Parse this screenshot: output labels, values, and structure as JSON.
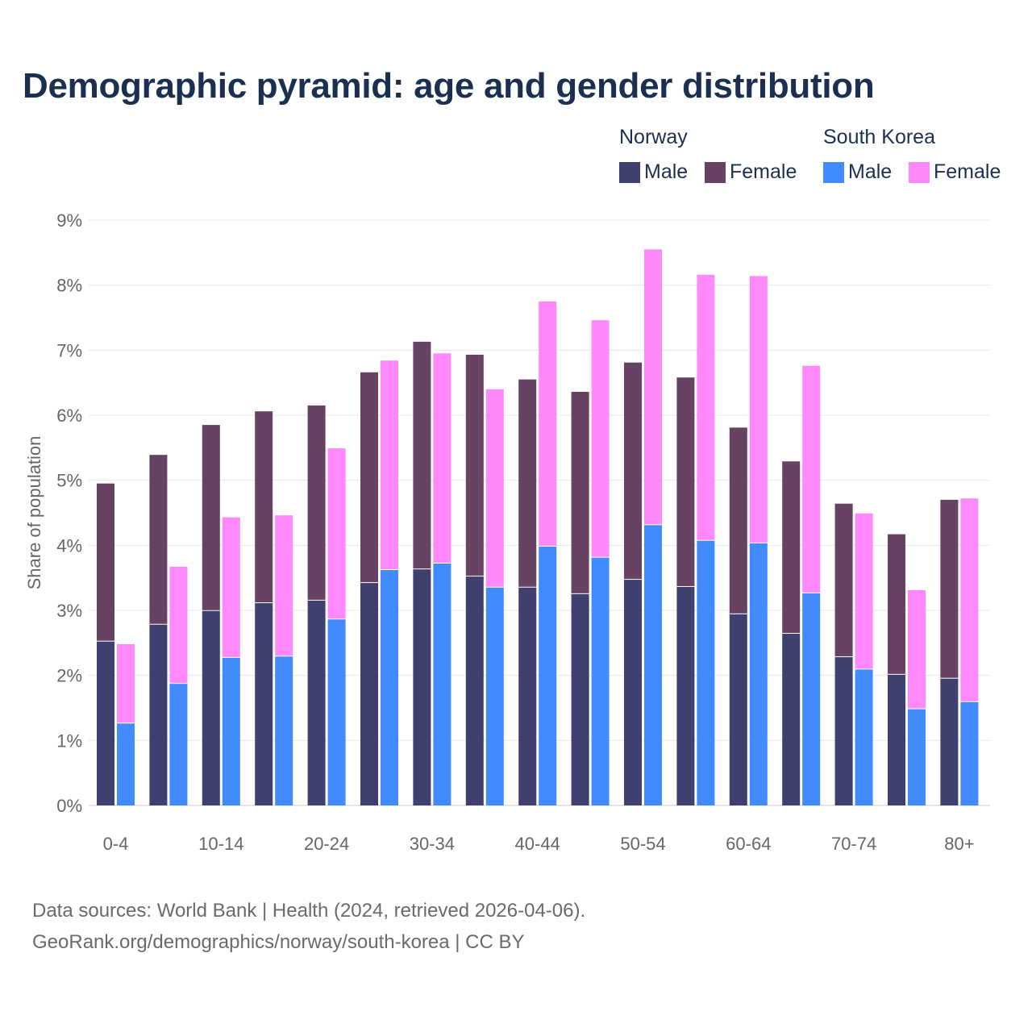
{
  "title": "Demographic pyramid: age and gender distribution",
  "legend": {
    "groups": [
      {
        "name": "Norway",
        "items": [
          {
            "label": "Male",
            "color": "#3f3f70"
          },
          {
            "label": "Female",
            "color": "#684262"
          }
        ]
      },
      {
        "name": "South Korea",
        "items": [
          {
            "label": "Male",
            "color": "#418bff"
          },
          {
            "label": "Female",
            "color": "#ff88fb"
          }
        ]
      }
    ]
  },
  "footer": {
    "line1": "Data sources: World Bank | Health (2024, retrieved 2026-04-06).",
    "line2": "GeoRank.org/demographics/norway/south-korea | CC BY"
  },
  "chart_data": {
    "type": "bar",
    "stacked": true,
    "title": "Demographic pyramid: age and gender distribution",
    "xlabel": "",
    "ylabel": "Share of population",
    "ylim": [
      0,
      9
    ],
    "yticks": [
      "0%",
      "1%",
      "2%",
      "3%",
      "4%",
      "5%",
      "6%",
      "7%",
      "8%",
      "9%"
    ],
    "grid": true,
    "legend_position": "top-right",
    "categories": [
      "0-4",
      "5-9",
      "10-14",
      "15-19",
      "20-24",
      "25-29",
      "30-34",
      "35-39",
      "40-44",
      "45-49",
      "50-54",
      "55-59",
      "60-64",
      "65-69",
      "70-74",
      "75-79",
      "80+"
    ],
    "xtick_labels_shown": [
      "0-4",
      "10-14",
      "20-24",
      "30-34",
      "40-44",
      "50-54",
      "60-64",
      "70-74",
      "80+"
    ],
    "series": [
      {
        "name": "Norway Male",
        "country": "Norway",
        "stack": "Norway",
        "color": "#3f3f70",
        "values": [
          2.52,
          2.78,
          2.99,
          3.11,
          3.15,
          3.42,
          3.63,
          3.52,
          3.35,
          3.25,
          3.47,
          3.36,
          2.94,
          2.64,
          2.28,
          2.01,
          1.95
        ]
      },
      {
        "name": "Norway Female",
        "country": "Norway",
        "stack": "Norway",
        "color": "#684262",
        "values": [
          2.43,
          2.61,
          2.86,
          2.95,
          3.0,
          3.24,
          3.5,
          3.41,
          3.2,
          3.11,
          3.34,
          3.22,
          2.87,
          2.65,
          2.36,
          2.16,
          2.75
        ]
      },
      {
        "name": "South Korea Male",
        "country": "South Korea",
        "stack": "South Korea",
        "color": "#418bff",
        "values": [
          1.26,
          1.87,
          2.27,
          2.29,
          2.86,
          3.62,
          3.72,
          3.35,
          3.98,
          3.81,
          4.31,
          4.07,
          4.03,
          3.26,
          2.09,
          1.48,
          1.59
        ]
      },
      {
        "name": "South Korea Female",
        "country": "South Korea",
        "stack": "South Korea",
        "color": "#ff88fb",
        "values": [
          1.22,
          1.8,
          2.16,
          2.17,
          2.63,
          3.22,
          3.23,
          3.05,
          3.77,
          3.65,
          4.24,
          4.09,
          4.11,
          3.5,
          2.4,
          1.83,
          3.13
        ]
      }
    ]
  }
}
